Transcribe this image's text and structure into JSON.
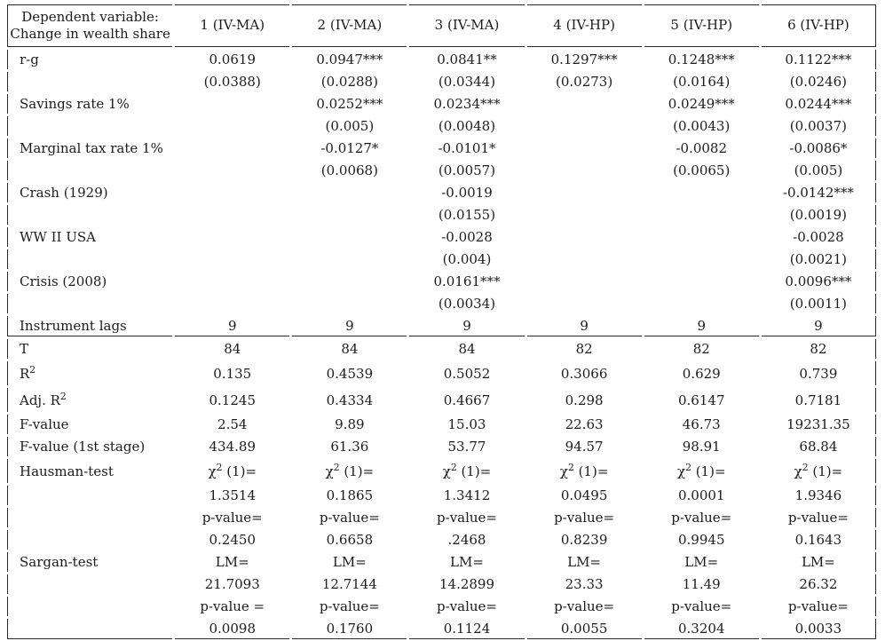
{
  "colors": {
    "background": "#ffffff",
    "text": "#1c1c1c",
    "border": "#2a2a2a"
  },
  "table": {
    "header": {
      "label_line1": "Dependent variable:",
      "label_line2": "Change in wealth share",
      "columns": [
        "1 (IV-MA)",
        "2 (IV-MA)",
        "3 (IV-MA)",
        "4 (IV-HP)",
        "5 (IV-HP)",
        "6 (IV-HP)"
      ]
    },
    "rows": [
      {
        "label": "r-g",
        "cells": [
          "0.0619",
          "0.0947***",
          "0.0841**",
          "0.1297***",
          "0.1248***",
          "0.1122***"
        ]
      },
      {
        "label": "",
        "cells": [
          "(0.0388)",
          "(0.0288)",
          "(0.0344)",
          "(0.0273)",
          "(0.0164)",
          "(0.0246)"
        ]
      },
      {
        "label": "Savings rate 1%",
        "cells": [
          "",
          "0.0252***",
          "0.0234***",
          "",
          "0.0249***",
          "0.0244***"
        ]
      },
      {
        "label": "",
        "cells": [
          "",
          "(0.005)",
          "(0.0048)",
          "",
          "(0.0043)",
          "(0.0037)"
        ]
      },
      {
        "label": "Marginal tax rate 1%",
        "cells": [
          "",
          "-0.0127*",
          "-0.0101*",
          "",
          "-0.0082",
          "-0.0086*"
        ]
      },
      {
        "label": "",
        "cells": [
          "",
          "(0.0068)",
          "(0.0057)",
          "",
          "(0.0065)",
          "(0.005)"
        ]
      },
      {
        "label": "Crash (1929)",
        "cells": [
          "",
          "",
          "-0.0019",
          "",
          "",
          "-0.0142***"
        ]
      },
      {
        "label": "",
        "cells": [
          "",
          "",
          "(0.0155)",
          "",
          "",
          "(0.0019)"
        ]
      },
      {
        "label": "WW II USA",
        "cells": [
          "",
          "",
          "-0.0028",
          "",
          "",
          "-0.0028"
        ]
      },
      {
        "label": "",
        "cells": [
          "",
          "",
          "(0.004)",
          "",
          "",
          "(0.0021)"
        ]
      },
      {
        "label": "Crisis (2008)",
        "cells": [
          "",
          "",
          "0.0161***",
          "",
          "",
          "0.0096***"
        ]
      },
      {
        "label": "",
        "cells": [
          "",
          "",
          "(0.0034)",
          "",
          "",
          "(0.0011)"
        ]
      },
      {
        "label": "Instrument lags",
        "cells": [
          "9",
          "9",
          "9",
          "9",
          "9",
          "9"
        ],
        "rule": true
      },
      {
        "label": "T",
        "cells": [
          "84",
          "84",
          "84",
          "82",
          "82",
          "82"
        ]
      },
      {
        "label": "R^2",
        "cells": [
          "0.135",
          "0.4539",
          "0.5052",
          "0.3066",
          "0.629",
          "0.739"
        ],
        "tall": true
      },
      {
        "label": "Adj. R^2",
        "cells": [
          "0.1245",
          "0.4334",
          "0.4667",
          "0.298",
          "0.6147",
          "0.7181"
        ],
        "tall": true
      },
      {
        "label": "F-value",
        "cells": [
          "2.54",
          "9.89",
          "15.03",
          "22.63",
          "46.73",
          "19231.35"
        ]
      },
      {
        "label": "F-value (1st stage)",
        "cells": [
          "434.89",
          "61.36",
          "53.77",
          "94.57",
          "98.91",
          "68.84"
        ]
      },
      {
        "label": "Hausman-test",
        "cells": [
          "χ^2 (1)=",
          "χ^2 (1)=",
          "χ^2 (1)=",
          "χ^2 (1)=",
          "χ^2 (1)=",
          "χ^2 (1)="
        ],
        "tall": true
      },
      {
        "label": "",
        "cells": [
          "1.3514",
          "0.1865",
          "1.3412",
          "0.0495",
          "0.0001",
          "1.9346"
        ]
      },
      {
        "label": "",
        "cells": [
          "p-value=",
          "p-value=",
          "p-value=",
          "p-value=",
          "p-value=",
          "p-value="
        ]
      },
      {
        "label": "",
        "cells": [
          "0.2450",
          "0.6658",
          ".2468",
          "0.8239",
          "0.9945",
          "0.1643"
        ]
      },
      {
        "label": "Sargan-test",
        "cells": [
          "LM=",
          "LM=",
          "LM=",
          "LM=",
          "LM=",
          "LM="
        ]
      },
      {
        "label": "",
        "cells": [
          "21.7093",
          "12.7144",
          "14.2899",
          "23.33",
          "11.49",
          "26.32"
        ]
      },
      {
        "label": "",
        "cells": [
          "p-value =",
          "p-value=",
          "p-value=",
          "p-value=",
          "p-value=",
          "p-value="
        ]
      },
      {
        "label": "",
        "cells": [
          "0.0098",
          "0.1760",
          "0.1124",
          "0.0055",
          "0.3204",
          "0.0033"
        ],
        "rule": true
      }
    ]
  }
}
